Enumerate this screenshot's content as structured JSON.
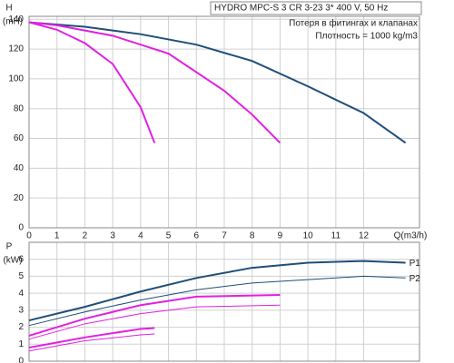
{
  "chart_data": [
    {
      "type": "line",
      "title": "HYDRO MPC-S 3 CR 3-23   3* 400 V, 50 Hz",
      "ylabel": "H",
      "yunit": "(mH)",
      "xlabel": "Q(m3/h)",
      "annotations": [
        "Потеря в фитингах и клапанах",
        "Плотность = 1000 kg/m3"
      ],
      "xlim": [
        0,
        14
      ],
      "xticks": [
        0,
        1,
        2,
        3,
        4,
        5,
        6,
        7,
        8,
        9,
        10,
        11,
        12
      ],
      "ylim": [
        0,
        142
      ],
      "yticks": [
        0,
        20,
        40,
        60,
        80,
        100,
        120,
        140
      ],
      "grid": true,
      "series": [
        {
          "color": "#1f4e79",
          "width": 2,
          "x": [
            0,
            2,
            4,
            6,
            8,
            10,
            12,
            13.5
          ],
          "values": [
            138,
            135,
            130,
            123,
            112,
            95,
            77,
            57
          ]
        },
        {
          "color": "#e020e0",
          "width": 2,
          "x": [
            0,
            1,
            3,
            5,
            7,
            8,
            9
          ],
          "values": [
            138,
            136,
            129,
            117,
            92,
            76,
            57
          ]
        },
        {
          "color": "#e020e0",
          "width": 2,
          "x": [
            0,
            1,
            2,
            3,
            4,
            4.5
          ],
          "values": [
            138,
            133,
            124,
            110,
            81,
            57
          ]
        }
      ]
    },
    {
      "type": "line",
      "ylabel": "P",
      "yunit": "(kW)",
      "xlim": [
        0,
        14
      ],
      "xticks": [
        0,
        1,
        2,
        3,
        4,
        5,
        6,
        7,
        8,
        9,
        10,
        11,
        12
      ],
      "ylim": [
        0,
        7
      ],
      "yticks": [
        0,
        1,
        2,
        3,
        4,
        5,
        6
      ],
      "grid": true,
      "series": [
        {
          "name": "P1",
          "color": "#1f4e79",
          "width": 2,
          "x": [
            0,
            2,
            4,
            6,
            8,
            10,
            12,
            13.5
          ],
          "values": [
            2.4,
            3.2,
            4.1,
            4.9,
            5.5,
            5.8,
            5.9,
            5.8
          ]
        },
        {
          "name": "P2",
          "color": "#1f4e79",
          "width": 1,
          "x": [
            0,
            2,
            4,
            6,
            8,
            10,
            12,
            13.5
          ],
          "values": [
            2.1,
            2.9,
            3.6,
            4.2,
            4.6,
            4.8,
            5.0,
            4.9
          ]
        },
        {
          "color": "#e020e0",
          "width": 2,
          "x": [
            0,
            2,
            4,
            6,
            9
          ],
          "values": [
            1.5,
            2.5,
            3.3,
            3.8,
            3.9
          ]
        },
        {
          "color": "#e020e0",
          "width": 1,
          "x": [
            0,
            2,
            4,
            6,
            9
          ],
          "values": [
            1.3,
            2.2,
            2.8,
            3.2,
            3.3
          ]
        },
        {
          "color": "#e020e0",
          "width": 2,
          "x": [
            0,
            2,
            4,
            4.5
          ],
          "values": [
            0.8,
            1.4,
            1.9,
            1.95
          ]
        },
        {
          "color": "#e020e0",
          "width": 1,
          "x": [
            0,
            2,
            4,
            4.5
          ],
          "values": [
            0.6,
            1.2,
            1.55,
            1.6
          ]
        }
      ]
    }
  ]
}
